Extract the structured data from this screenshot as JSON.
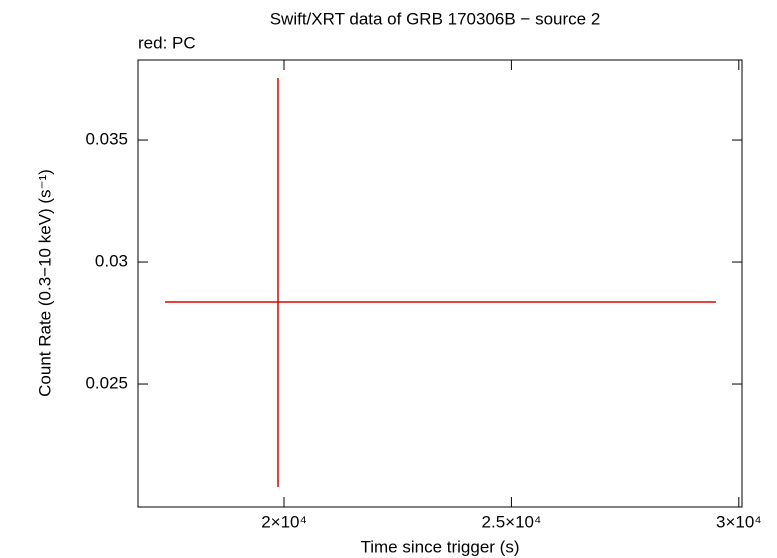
{
  "chart_data": {
    "type": "errorbar",
    "title": "Swift/XRT data of GRB 170306B − source 2",
    "subtitle": "red: PC",
    "x_label": "Time since trigger (s)",
    "y_label": "Count Rate (0.3−10 keV) (s⁻¹)",
    "color": "#dd0000",
    "x": [
      19868
    ],
    "values": [
      0.02836
    ],
    "xerr_minus": [
      2483
    ],
    "xerr_plus": [
      9627
    ],
    "yerr_minus": [
      0.00758
    ],
    "yerr_plus": [
      0.00918
    ],
    "xlim": [
      16790,
      30070
    ],
    "ylim": [
      0.01996,
      0.03828
    ],
    "xticks": [
      {
        "value": 20000,
        "label": "2×10⁴"
      },
      {
        "value": 25000,
        "label": "2.5×10⁴"
      },
      {
        "value": 30000,
        "label": "3×10⁴"
      }
    ],
    "yticks": [
      0.025,
      0.03,
      0.035
    ]
  }
}
